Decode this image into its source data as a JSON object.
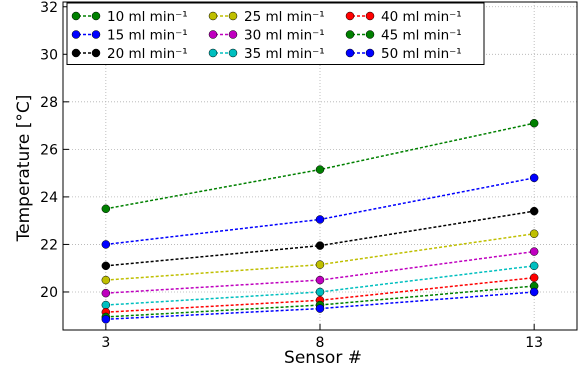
{
  "chart_data": {
    "type": "line",
    "xlabel": "Sensor #",
    "ylabel": "Temperature [°C]",
    "x": [
      3,
      8,
      13
    ],
    "x_ticks": [
      "3",
      "8",
      "13"
    ],
    "y_ticks": [
      "20",
      "22",
      "24",
      "26",
      "28",
      "30",
      "32"
    ],
    "xlim": [
      2,
      14
    ],
    "ylim": [
      18.4,
      32.2
    ],
    "grid": true,
    "legend_position": "top-left",
    "series": [
      {
        "name": "10 ml min⁻¹",
        "color": "#008000",
        "values": [
          23.5,
          25.15,
          27.1
        ]
      },
      {
        "name": "15 ml min⁻¹",
        "color": "#0000ff",
        "values": [
          22.0,
          23.05,
          24.8
        ]
      },
      {
        "name": "20 ml min⁻¹",
        "color": "#000000",
        "values": [
          21.1,
          21.95,
          23.4
        ]
      },
      {
        "name": "25 ml min⁻¹",
        "color": "#bfbf00",
        "values": [
          20.5,
          21.15,
          22.45
        ]
      },
      {
        "name": "30 ml min⁻¹",
        "color": "#bf00bf",
        "values": [
          19.95,
          20.5,
          21.7
        ]
      },
      {
        "name": "35 ml min⁻¹",
        "color": "#00bfbf",
        "values": [
          19.45,
          20.0,
          21.1
        ]
      },
      {
        "name": "40 ml min⁻¹",
        "color": "#ff0000",
        "values": [
          19.15,
          19.65,
          20.6
        ]
      },
      {
        "name": "45 ml min⁻¹",
        "color": "#008000",
        "values": [
          18.95,
          19.45,
          20.25
        ]
      },
      {
        "name": "50 ml min⁻¹",
        "color": "#0000ff",
        "values": [
          18.85,
          19.3,
          20.0
        ]
      }
    ]
  }
}
